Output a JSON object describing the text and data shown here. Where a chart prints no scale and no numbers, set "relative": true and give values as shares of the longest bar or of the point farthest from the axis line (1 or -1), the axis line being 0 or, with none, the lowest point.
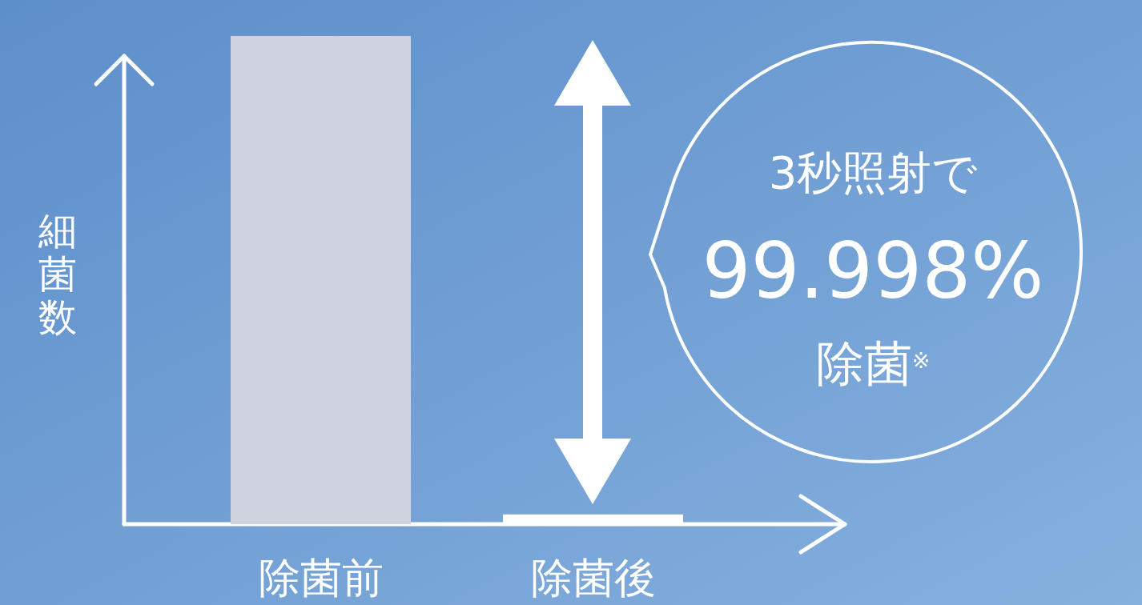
{
  "chart_data": {
    "type": "bar",
    "relative": true,
    "ylabel": "細菌数",
    "categories": [
      "除菌前",
      "除菌後"
    ],
    "values": [
      1,
      0.02
    ],
    "colors": [
      "#cfd3df",
      "#ffffff"
    ],
    "annotations": [
      "3秒照射で",
      "99.998%",
      "除菌$^{※}$"
    ]
  }
}
